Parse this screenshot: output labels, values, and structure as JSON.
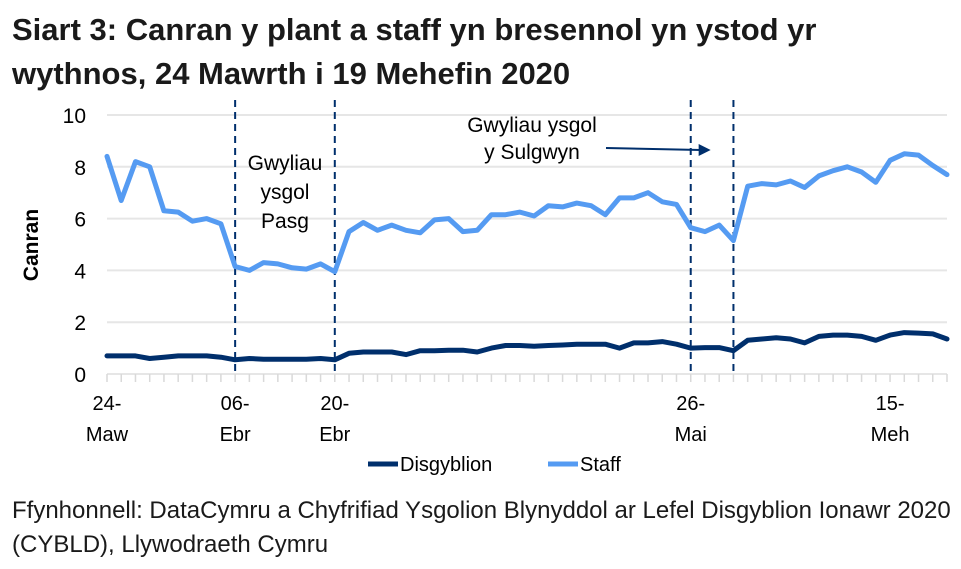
{
  "title": "Siart 3: Canran y plant a staff yn bresennol yn ystod yr wythnos, 24 Mawrth i 19 Mehefin 2020",
  "source": "Ffynhonnell: DataCymru a Chyfrifiad Ysgolion Blynyddol ar Lefel Disgyblion Ionawr 2020 (CYBLD), Llywodraeth Cymru",
  "colors": {
    "disgyblion": "#002f6c",
    "staff": "#559bf2",
    "gridline": "#e6e6e6",
    "annotation": "#002f6c"
  },
  "chart_data": {
    "type": "line",
    "title": "Siart 3: Canran y plant a staff yn bresennol yn ystod yr wythnos, 24 Mawrth i 19 Mehefin 2020",
    "xlabel": "",
    "ylabel": "Canran",
    "ylim": [
      0,
      10
    ],
    "yticks": [
      0,
      2,
      4,
      6,
      8,
      10
    ],
    "grid": true,
    "legend_position": "bottom",
    "x_tick_labels": [
      {
        "index": 0,
        "line1": "24-",
        "line2": "Maw"
      },
      {
        "index": 9,
        "line1": "06-",
        "line2": "Ebr"
      },
      {
        "index": 16,
        "line1": "20-",
        "line2": "Ebr"
      },
      {
        "index": 41,
        "line1": "26-",
        "line2": "Mai"
      },
      {
        "index": 55,
        "line1": "15-",
        "line2": "Meh"
      }
    ],
    "n_points": 60,
    "series": [
      {
        "name": "Disgyblion",
        "color": "#002f6c",
        "values": [
          0.7,
          0.7,
          0.7,
          0.6,
          0.65,
          0.7,
          0.7,
          0.7,
          0.65,
          0.55,
          0.6,
          0.57,
          0.57,
          0.57,
          0.57,
          0.6,
          0.55,
          0.8,
          0.85,
          0.85,
          0.85,
          0.75,
          0.9,
          0.9,
          0.92,
          0.92,
          0.85,
          1.0,
          1.1,
          1.1,
          1.07,
          1.1,
          1.12,
          1.15,
          1.15,
          1.15,
          1.0,
          1.2,
          1.2,
          1.25,
          1.15,
          1.0,
          1.02,
          1.02,
          0.9,
          1.3,
          1.35,
          1.4,
          1.35,
          1.2,
          1.45,
          1.5,
          1.5,
          1.45,
          1.3,
          1.5,
          1.6,
          1.58,
          1.55,
          1.35
        ]
      },
      {
        "name": "Staff",
        "color": "#559bf2",
        "values": [
          8.4,
          6.7,
          8.2,
          8.0,
          6.3,
          6.25,
          5.9,
          6.0,
          5.8,
          4.15,
          4.0,
          4.3,
          4.25,
          4.1,
          4.05,
          4.25,
          3.95,
          5.5,
          5.85,
          5.55,
          5.75,
          5.55,
          5.45,
          5.95,
          6.0,
          5.5,
          5.55,
          6.15,
          6.15,
          6.25,
          6.1,
          6.5,
          6.45,
          6.6,
          6.5,
          6.15,
          6.8,
          6.8,
          7.0,
          6.65,
          6.55,
          5.65,
          5.5,
          5.75,
          5.15,
          7.25,
          7.35,
          7.3,
          7.45,
          7.2,
          7.65,
          7.85,
          8.0,
          7.8,
          7.4,
          8.25,
          8.5,
          8.45,
          8.05,
          7.7
        ]
      }
    ],
    "vertical_lines": [
      9,
      16,
      41,
      44
    ],
    "annotations": [
      {
        "text_lines": [
          "Gwyliau",
          "ysgol",
          "Pasg"
        ],
        "between": [
          9,
          16
        ]
      },
      {
        "text_lines": [
          "Gwyliau ysgol",
          "y Sulgwyn"
        ],
        "arrow_to_index": 42.4
      }
    ]
  },
  "legend": {
    "items": [
      {
        "label": "Disgyblion"
      },
      {
        "label": "Staff"
      }
    ]
  }
}
